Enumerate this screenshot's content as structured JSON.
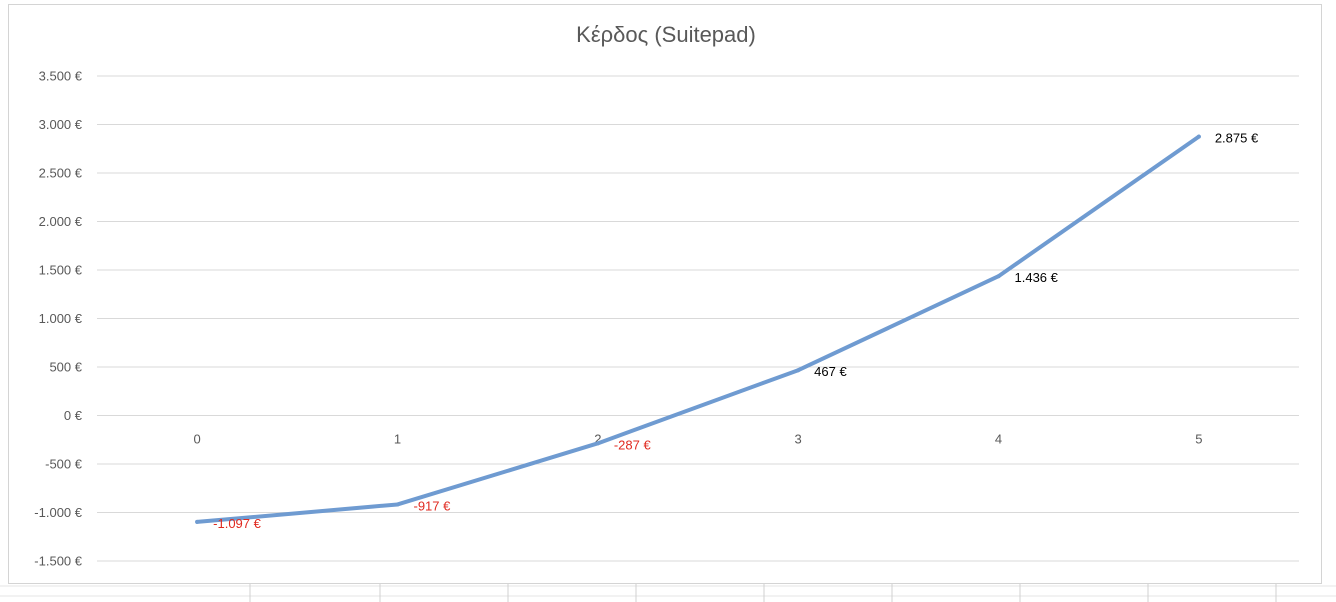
{
  "chart_data": {
    "type": "line",
    "title": "Κέρδος (Suitepad)",
    "xlabel": "",
    "ylabel": "",
    "categories": [
      "0",
      "1",
      "2",
      "3",
      "4",
      "5"
    ],
    "series": [
      {
        "values": [
          -1097,
          -917,
          -287,
          467,
          1436,
          2875
        ],
        "data_labels": [
          "-1.097 €",
          "-917 €",
          "-287 €",
          "467 €",
          "1.436 €",
          "2.875 €"
        ]
      }
    ],
    "ylim": [
      -1500,
      3500
    ],
    "y_ticks": [
      3500,
      3000,
      2500,
      2000,
      1500,
      1000,
      500,
      0,
      -500,
      -1000,
      -1500
    ],
    "y_tick_labels": [
      "3.500 €",
      "3.000 €",
      "2.500 €",
      "2.000 €",
      "1.500 €",
      "1.000 €",
      "500 €",
      "0 €",
      "-500 €",
      "-1.000 €",
      "-1.500 €"
    ],
    "grid": true,
    "legend": "none",
    "colors": {
      "line": "#6f9bd1",
      "negative_label": "#e02a20",
      "positive_label": "#000000",
      "grid": "#d9d9d9",
      "axis_text": "#595959"
    }
  }
}
